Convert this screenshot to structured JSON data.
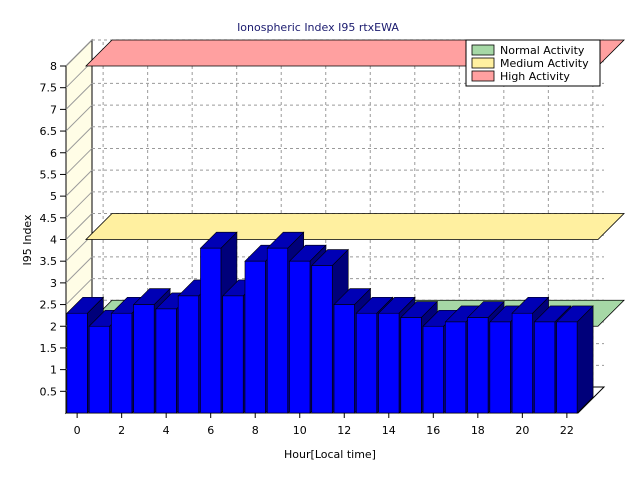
{
  "chart_data": {
    "type": "bar",
    "title": "Ionospheric Index I95 rtxEWA",
    "xlabel": "Hour[Local time]",
    "ylabel": "I95 Index",
    "x": [
      0,
      1,
      2,
      3,
      4,
      5,
      6,
      7,
      8,
      9,
      10,
      11,
      12,
      13,
      14,
      15,
      16,
      17,
      18,
      19,
      20,
      21,
      22
    ],
    "values": [
      2.3,
      2.0,
      2.3,
      2.5,
      2.4,
      2.7,
      3.8,
      2.7,
      3.5,
      3.8,
      3.5,
      3.4,
      2.5,
      2.3,
      2.3,
      2.2,
      2.0,
      2.1,
      2.2,
      2.1,
      2.3,
      2.1,
      2.1
    ],
    "x_tick_labels": [
      "0",
      "2",
      "4",
      "6",
      "8",
      "10",
      "12",
      "14",
      "16",
      "18",
      "20",
      "22"
    ],
    "y_tick_labels": [
      "0.5",
      "1",
      "1.5",
      "2",
      "2.5",
      "3",
      "3.5",
      "4",
      "4.5",
      "5",
      "5.5",
      "6",
      "6.5",
      "7",
      "7.5",
      "8"
    ],
    "ylim": [
      0,
      8
    ],
    "grid": true,
    "legend_position": "top-right",
    "bar_color": "#0000ff",
    "bands": [
      {
        "name": "Normal Activity",
        "value": 2.0,
        "color": "#a6d8a6"
      },
      {
        "name": "Medium Activity",
        "value": 4.0,
        "color": "#fff0a0"
      },
      {
        "name": "High Activity",
        "value": 8.0,
        "color": "#ffa0a0"
      }
    ]
  }
}
